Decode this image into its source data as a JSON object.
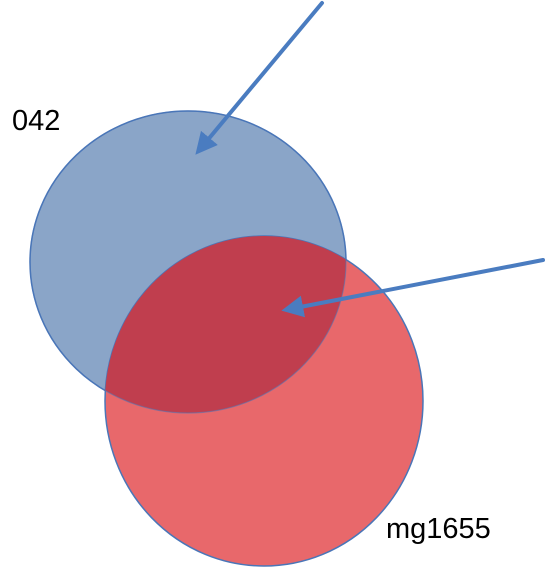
{
  "diagram": {
    "sets": [
      {
        "id": "a",
        "label": "042",
        "fill": "#8aa5c8",
        "stroke": "#4a76b8"
      },
      {
        "id": "b",
        "label": "mg1655",
        "fill": "#e8686b",
        "stroke": "#4a76b8"
      }
    ],
    "overlap_fill": "#c03e4e",
    "arrow_color": "#4a7cc0",
    "arrows": [
      {
        "points_to": "a"
      },
      {
        "points_to": "overlap"
      }
    ]
  }
}
